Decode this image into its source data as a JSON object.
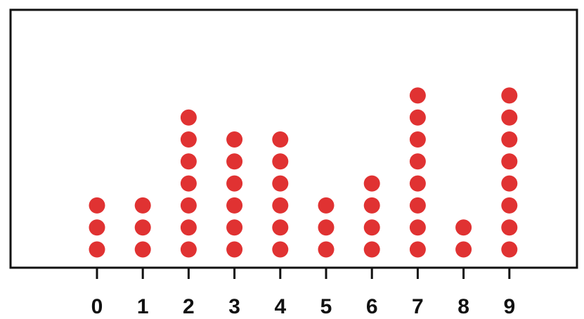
{
  "chart_data": {
    "type": "dot_plot",
    "categories": [
      "0",
      "1",
      "2",
      "3",
      "4",
      "5",
      "6",
      "7",
      "8",
      "9"
    ],
    "x": [
      0,
      1,
      2,
      3,
      4,
      5,
      6,
      7,
      8,
      9
    ],
    "values": [
      3,
      3,
      7,
      6,
      6,
      3,
      4,
      8,
      2,
      8
    ],
    "title": "",
    "xlabel": "",
    "ylabel": "",
    "grid": false,
    "legend": "none",
    "colors": {
      "dot": "#e03232",
      "frame": "#111111",
      "axis_text": "#111111",
      "background": "#ffffff"
    }
  }
}
